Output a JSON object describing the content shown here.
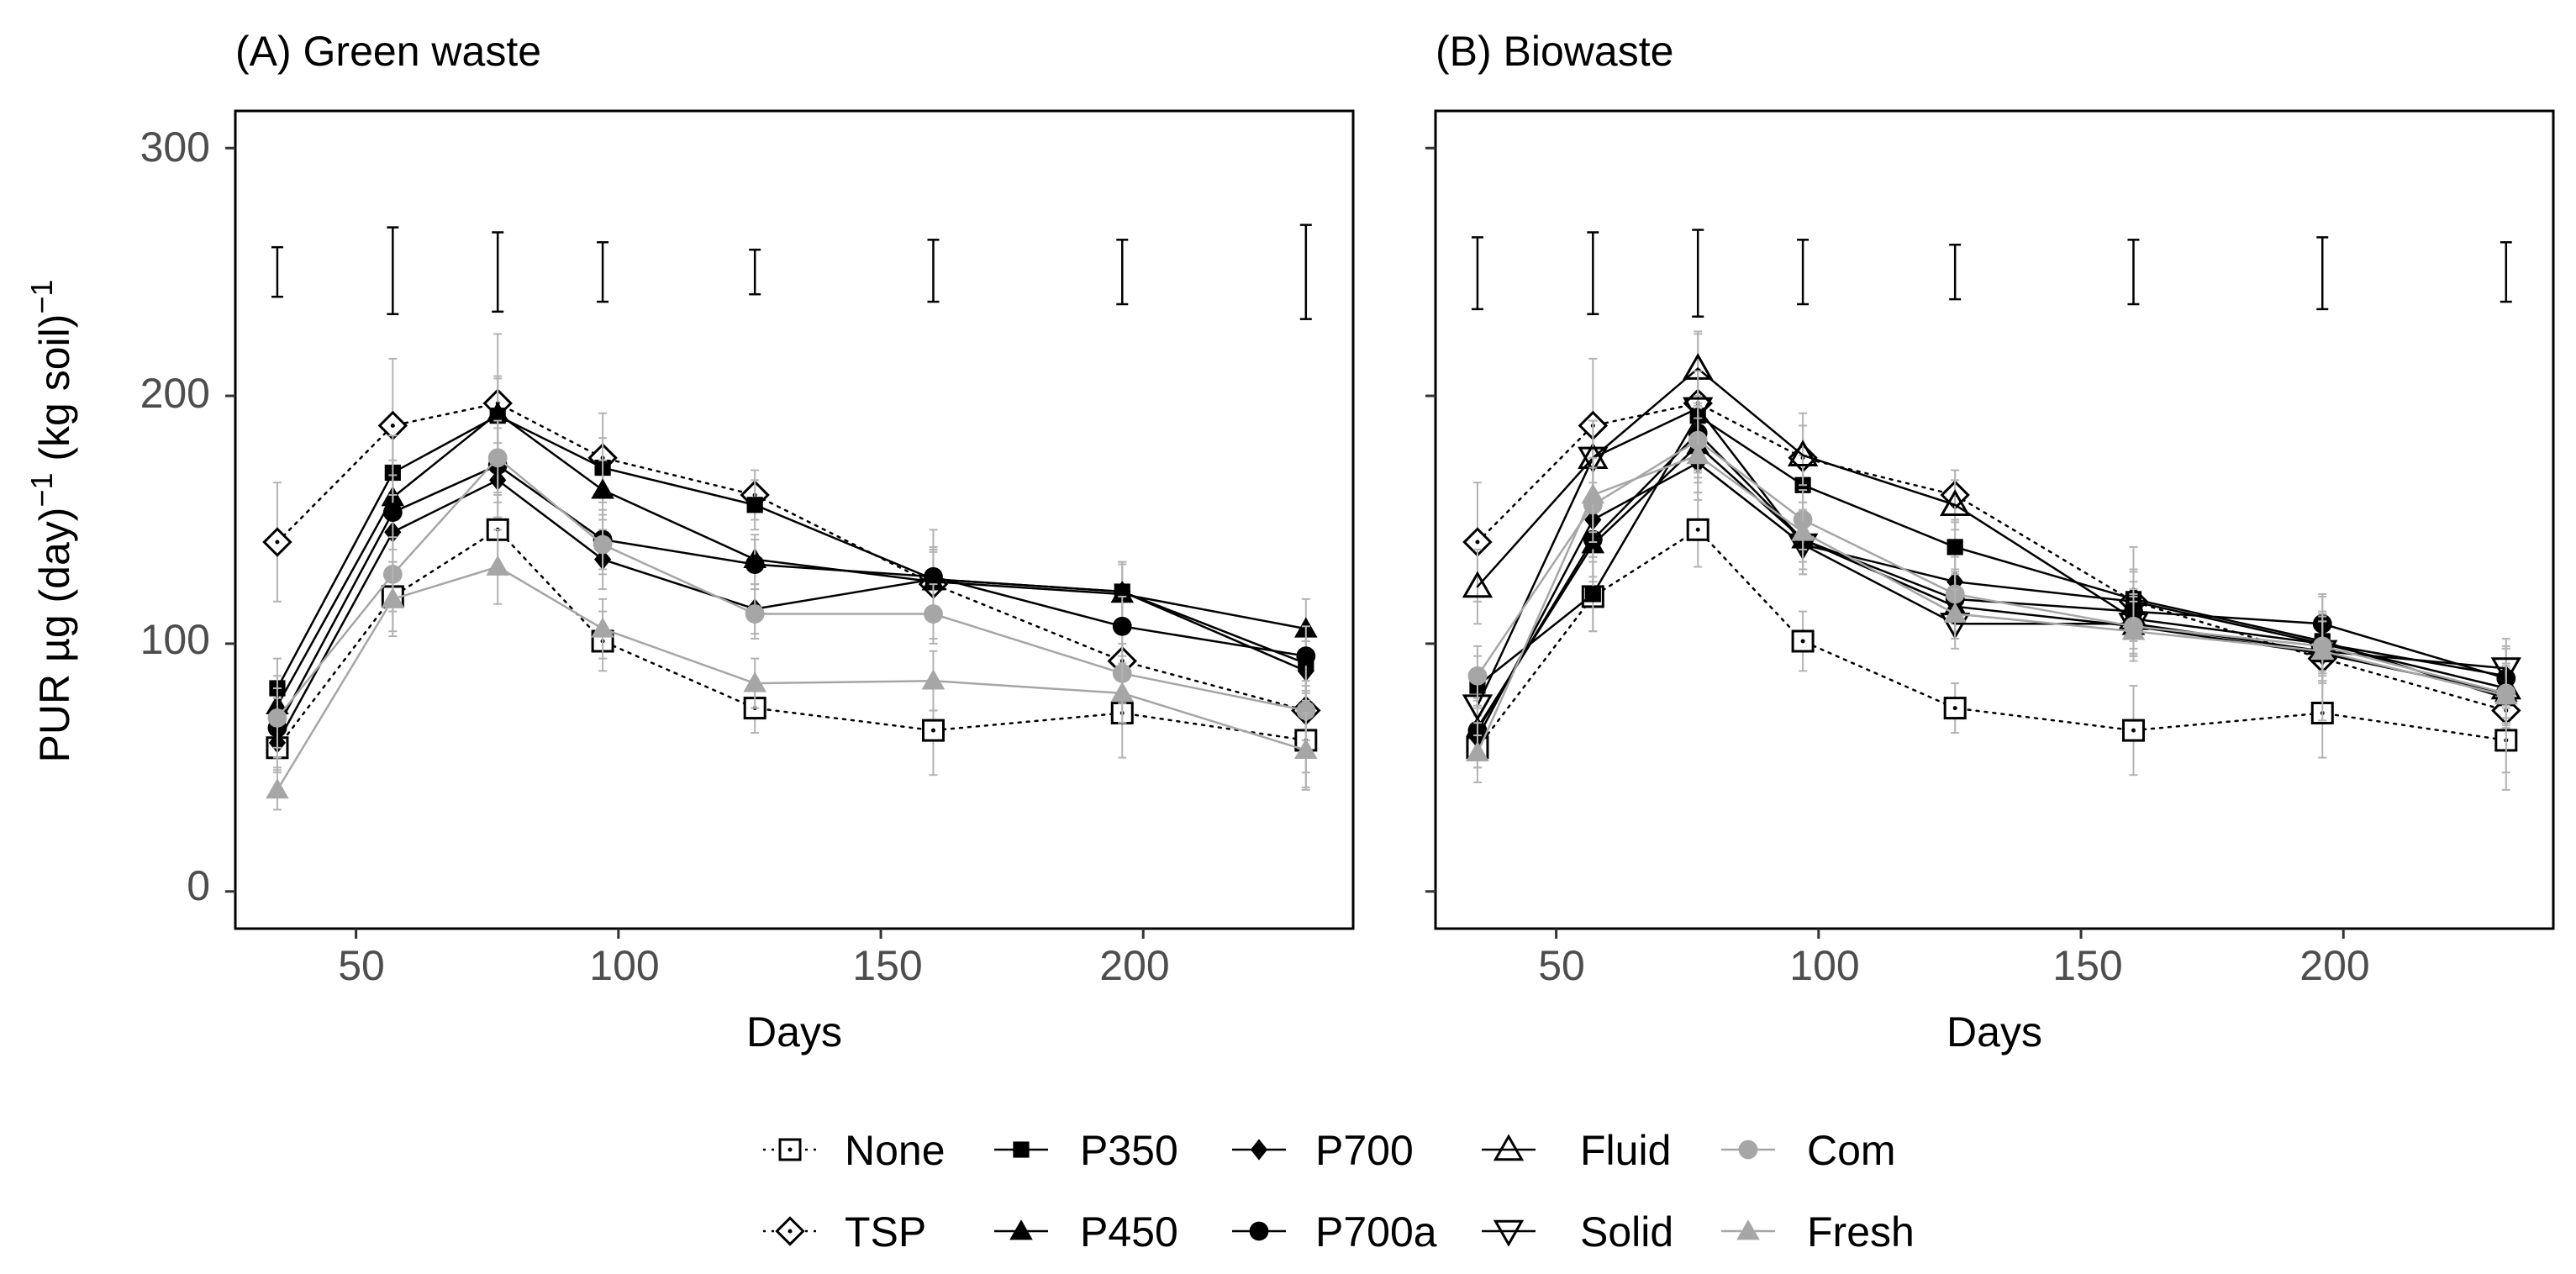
{
  "chart_data": {
    "type": "line",
    "ylabel": "PUR  µg (day)⁻¹ (kg soil)⁻¹",
    "ylabel_parts": [
      "PUR  µg (day)",
      "−1",
      " (kg soil)",
      "−1"
    ],
    "xlim": [
      27,
      240
    ],
    "ylim": [
      -15,
      315
    ],
    "xticks": [
      50,
      100,
      150,
      200
    ],
    "yticks": [
      0,
      100,
      200,
      300
    ],
    "x": [
      35,
      57,
      77,
      97,
      126,
      160,
      196,
      231
    ],
    "legend": {
      "position": "bottom",
      "items": [
        "None",
        "TSP",
        "P350",
        "P450",
        "P700",
        "P700a",
        "Fluid",
        "Solid",
        "Com",
        "Fresh"
      ]
    },
    "styles": {
      "None": {
        "color": "#000000",
        "dash": "dotted",
        "marker": "square-open-dot"
      },
      "TSP": {
        "color": "#000000",
        "dash": "dotted",
        "marker": "diamond-open-dot"
      },
      "P350": {
        "color": "#000000",
        "dash": "solid",
        "marker": "square-filled"
      },
      "P450": {
        "color": "#000000",
        "dash": "solid",
        "marker": "triangle-filled"
      },
      "P700": {
        "color": "#000000",
        "dash": "solid",
        "marker": "diamond-filled"
      },
      "P700a": {
        "color": "#000000",
        "dash": "solid",
        "marker": "circle-filled"
      },
      "Fluid": {
        "color": "#000000",
        "dash": "solid",
        "marker": "triangle-open"
      },
      "Solid": {
        "color": "#000000",
        "dash": "solid",
        "marker": "triangle-down-open"
      },
      "Com": {
        "color": "#a6a6a6",
        "dash": "solid",
        "marker": "circle-filled"
      },
      "Fresh": {
        "color": "#a6a6a6",
        "dash": "solid",
        "marker": "triangle-filled"
      }
    },
    "panels": [
      {
        "title": "(A) Green waste",
        "xlabel": "Days",
        "lsd": [
          [
            240,
            260
          ],
          [
            233,
            268
          ],
          [
            234,
            266
          ],
          [
            238,
            262
          ],
          [
            241,
            259
          ],
          [
            238,
            263
          ],
          [
            237,
            263
          ],
          [
            231,
            269
          ]
        ],
        "series": [
          {
            "name": "None",
            "values": [
              58,
              119,
              146,
              101,
              74,
              65,
              72,
              61
            ],
            "err": [
              8,
              14,
              15,
              12,
              10,
              18,
              18,
              20
            ]
          },
          {
            "name": "TSP",
            "values": [
              141,
              188,
              197,
              175,
              160,
              124,
              93,
              73
            ],
            "err": [
              24,
              27,
              28,
              18,
              10,
              22,
              25,
              25
            ]
          },
          {
            "name": "P350",
            "values": [
              82,
              169,
              192,
              171,
              156,
              126,
              121,
              92
            ],
            "err": [
              12,
              15,
              15,
              12,
              10,
              12,
              12,
              12
            ]
          },
          {
            "name": "P450",
            "values": [
              75,
              159,
              193,
              162,
              134,
              125,
              120,
              106
            ],
            "err": [
              12,
              15,
              15,
              12,
              10,
              12,
              12,
              12
            ]
          },
          {
            "name": "P700",
            "values": [
              60,
              145,
              166,
              134,
              114,
              126,
              121,
              89
            ],
            "err": [
              12,
              15,
              15,
              12,
              10,
              12,
              12,
              12
            ]
          },
          {
            "name": "P700a",
            "values": [
              66,
              153,
              172,
              142,
              132,
              127,
              107,
              95
            ],
            "err": [
              12,
              15,
              15,
              12,
              10,
              12,
              12,
              12
            ]
          },
          {
            "name": "Com",
            "values": [
              70,
              128,
              175,
              140,
              112,
              112,
              88,
              73
            ],
            "err": [
              12,
              15,
              15,
              12,
              10,
              12,
              12,
              12
            ]
          },
          {
            "name": "Fresh",
            "values": [
              41,
              118,
              131,
              106,
              84,
              85,
              80,
              57
            ],
            "err": [
              8,
              15,
              15,
              12,
              10,
              12,
              12,
              15
            ]
          }
        ]
      },
      {
        "title": "(B) Biowaste",
        "xlabel": "Days",
        "lsd": [
          [
            235,
            264
          ],
          [
            233,
            266
          ],
          [
            232,
            267
          ],
          [
            237,
            263
          ],
          [
            239,
            261
          ],
          [
            237,
            263
          ],
          [
            235,
            264
          ],
          [
            238,
            262
          ]
        ],
        "series": [
          {
            "name": "None",
            "values": [
              58,
              119,
              146,
              101,
              74,
              65,
              72,
              61
            ],
            "err": [
              8,
              14,
              15,
              12,
              10,
              18,
              18,
              20
            ]
          },
          {
            "name": "TSP",
            "values": [
              141,
              188,
              197,
              175,
              160,
              117,
              94,
              73
            ],
            "err": [
              24,
              27,
              28,
              18,
              10,
              22,
              25,
              25
            ]
          },
          {
            "name": "P350",
            "values": [
              83,
              120,
              192,
              164,
              139,
              118,
              101,
              78
            ],
            "err": [
              12,
              15,
              15,
              12,
              10,
              12,
              12,
              12
            ]
          },
          {
            "name": "P450",
            "values": [
              66,
              140,
              180,
              142,
              115,
              107,
              96,
              80
            ],
            "err": [
              12,
              15,
              15,
              12,
              10,
              12,
              12,
              12
            ]
          },
          {
            "name": "P700",
            "values": [
              62,
              150,
              173,
              140,
              125,
              117,
              100,
              87
            ],
            "err": [
              12,
              15,
              15,
              12,
              10,
              12,
              12,
              12
            ]
          },
          {
            "name": "P700a",
            "values": [
              65,
              142,
              185,
              142,
              118,
              113,
              108,
              86
            ],
            "err": [
              12,
              15,
              15,
              12,
              10,
              12,
              12,
              12
            ]
          },
          {
            "name": "Fluid",
            "values": [
              123,
              175,
              211,
              176,
              156,
              110,
              100,
              82
            ],
            "err": [
              15,
              15,
              15,
              12,
              10,
              12,
              12,
              12
            ]
          },
          {
            "name": "Solid",
            "values": [
              75,
              175,
              195,
              140,
              108,
              108,
              97,
              90
            ],
            "err": [
              12,
              15,
              15,
              12,
              10,
              12,
              12,
              12
            ]
          },
          {
            "name": "Com",
            "values": [
              87,
              156,
              182,
              150,
              120,
              107,
              99,
              80
            ],
            "err": [
              12,
              15,
              15,
              12,
              10,
              12,
              12,
              12
            ]
          },
          {
            "name": "Fresh",
            "values": [
              56,
              160,
              176,
              145,
              112,
              105,
              97,
              79
            ],
            "err": [
              12,
              15,
              15,
              12,
              10,
              12,
              12,
              12
            ]
          }
        ]
      }
    ]
  }
}
